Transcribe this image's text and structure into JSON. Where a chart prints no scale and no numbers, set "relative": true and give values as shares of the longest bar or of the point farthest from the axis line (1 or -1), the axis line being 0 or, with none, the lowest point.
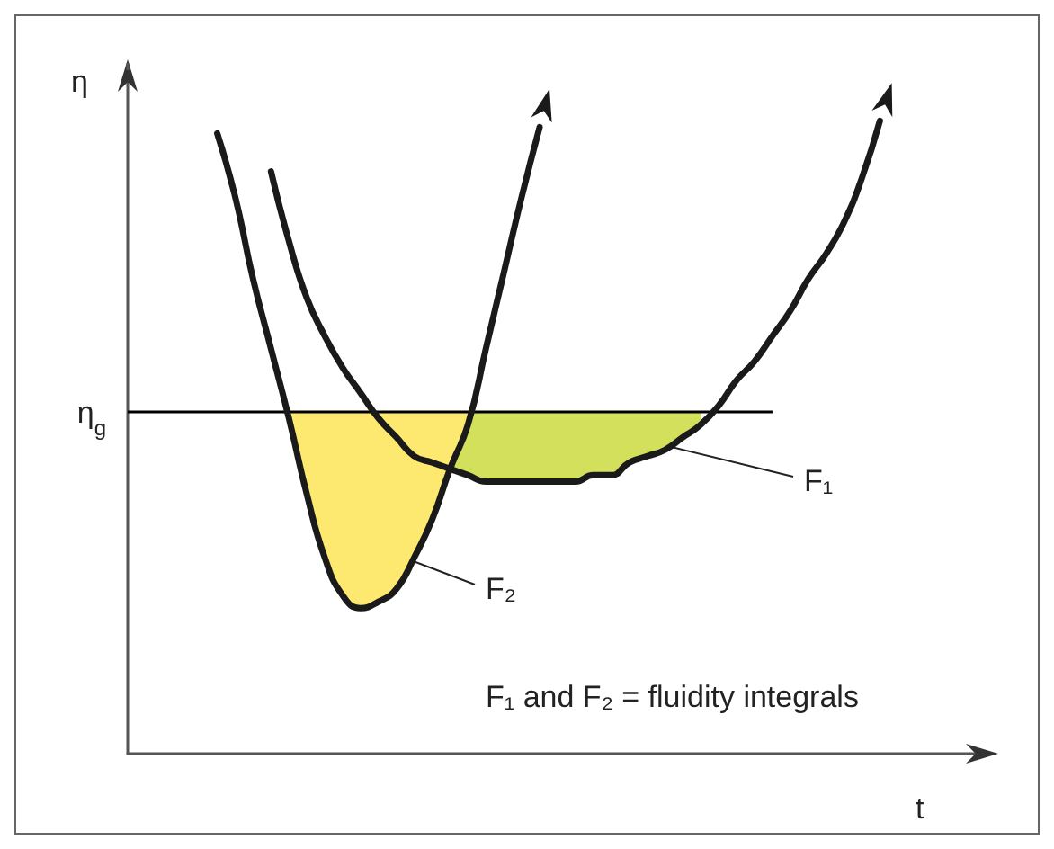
{
  "chart_data": {
    "type": "line",
    "relative": true,
    "xlabel": "t",
    "ylabel": "η",
    "categories": [
      null,
      null,
      null,
      null,
      null,
      null,
      null,
      null,
      null,
      null,
      null,
      null,
      null,
      null,
      null,
      null,
      null,
      null,
      null,
      null,
      null,
      null,
      null,
      null,
      null,
      null,
      null,
      null,
      null,
      null,
      null,
      null,
      null,
      null,
      null,
      null,
      null,
      null,
      null,
      null,
      null,
      null,
      null,
      null,
      null,
      null,
      null,
      null
    ],
    "series": [
      {
        "color": "#1a1a1a",
        "values": [
          null,
          null,
          null,
          null,
          null,
          0.98,
          0.88,
          0.75,
          0.64,
          0.53,
          0.41,
          0.31,
          0.25,
          0.23,
          0.24,
          0.26,
          0.31,
          0.37,
          0.45,
          0.52,
          0.64,
          0.76,
          0.88,
          0.99,
          null,
          null,
          null,
          null,
          null,
          null,
          null,
          null,
          null,
          null,
          null,
          null,
          null,
          null,
          null,
          null,
          null,
          null,
          null,
          null,
          null,
          null,
          null,
          null
        ],
        "lower": [
          null,
          null,
          null,
          null,
          null,
          null,
          null,
          null,
          null,
          0.53,
          0.41,
          0.31,
          0.25,
          0.23,
          0.24,
          0.26,
          0.31,
          0.37,
          0.45,
          0.52,
          null,
          null,
          null,
          null,
          null,
          null,
          null,
          null,
          null,
          null,
          null,
          null,
          null,
          null,
          null,
          null,
          null,
          null,
          null,
          null,
          null,
          null,
          null,
          null,
          null,
          null,
          null,
          null
        ],
        "upper": [
          null,
          null,
          null,
          null,
          null,
          null,
          null,
          null,
          null,
          0.54,
          0.54,
          0.54,
          0.54,
          0.54,
          0.54,
          0.54,
          0.54,
          0.54,
          0.54,
          0.54,
          null,
          null,
          null,
          null,
          null,
          null,
          null,
          null,
          null,
          null,
          null,
          null,
          null,
          null,
          null,
          null,
          null,
          null,
          null,
          null,
          null,
          null,
          null,
          null,
          null,
          null,
          null,
          null
        ]
      },
      {
        "color": "#1a1a1a",
        "values": [
          null,
          null,
          null,
          null,
          null,
          null,
          null,
          null,
          0.92,
          0.81,
          0.72,
          0.66,
          0.61,
          0.57,
          0.53,
          0.5,
          0.47,
          0.46,
          0.45,
          0.44,
          0.43,
          0.43,
          0.43,
          0.43,
          0.43,
          0.43,
          0.44,
          0.44,
          0.46,
          0.47,
          0.48,
          0.5,
          0.52,
          0.55,
          0.59,
          0.62,
          0.66,
          0.7,
          0.75,
          0.79,
          0.84,
          0.91,
          1,
          null,
          null,
          null,
          null,
          null
        ],
        "lower": [
          null,
          null,
          null,
          null,
          null,
          null,
          null,
          null,
          null,
          null,
          null,
          null,
          null,
          null,
          0.53,
          0.5,
          0.47,
          0.46,
          0.45,
          0.44,
          0.43,
          0.43,
          0.43,
          0.43,
          0.43,
          0.43,
          0.44,
          0.44,
          0.46,
          0.47,
          0.48,
          0.5,
          0.52,
          null,
          null,
          null,
          null,
          null,
          null,
          null,
          null,
          null,
          null,
          null,
          null,
          null,
          null,
          null
        ],
        "upper": [
          null,
          null,
          null,
          null,
          null,
          null,
          null,
          null,
          null,
          null,
          null,
          null,
          null,
          null,
          0.54,
          0.54,
          0.54,
          0.54,
          0.54,
          0.54,
          0.54,
          0.54,
          0.54,
          0.54,
          0.54,
          0.54,
          0.54,
          0.54,
          0.54,
          0.54,
          0.54,
          0.54,
          0.54,
          null,
          null,
          null,
          null,
          null,
          null,
          null,
          null,
          null,
          null,
          null,
          null,
          null,
          null,
          null
        ]
      }
    ],
    "ref_lines": [
      {
        "axis": "y",
        "value": 0.54,
        "label": "η$_{g}$",
        "color": "#000000"
      }
    ],
    "annotations": [
      "F₁",
      "F₂",
      "F₁ and F₂ = fluidity integrals"
    ]
  }
}
